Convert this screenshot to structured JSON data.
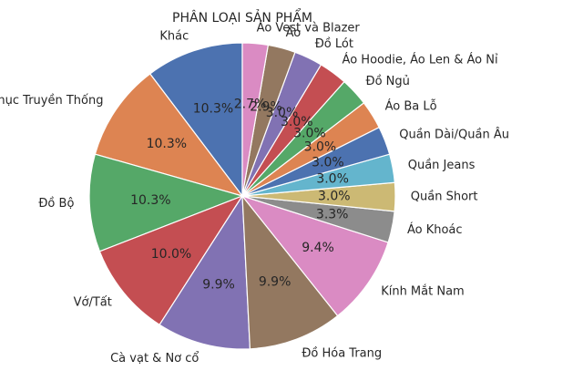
{
  "chart_data": {
    "type": "pie",
    "title": "PHÂN LOẠI SẢN PHẨM",
    "start_angle_deg": 90,
    "direction": "counterclockwise",
    "slices": [
      {
        "label": "Khác",
        "value": 10.3,
        "pct_label": "10.3%",
        "color": "#4c72b0"
      },
      {
        "label": "Trang Phục Truyền Thống",
        "value": 10.3,
        "pct_label": "10.3%",
        "color": "#dd8452"
      },
      {
        "label": "Đồ Bộ",
        "value": 10.3,
        "pct_label": "10.3%",
        "color": "#55a868"
      },
      {
        "label": "Vớ/Tất",
        "value": 10.0,
        "pct_label": "10.0%",
        "color": "#c44e52"
      },
      {
        "label": "Cà vạt & Nơ cổ",
        "value": 9.9,
        "pct_label": "9.9%",
        "color": "#8172b3"
      },
      {
        "label": "Đồ Hóa Trang",
        "value": 9.9,
        "pct_label": "9.9%",
        "color": "#937860"
      },
      {
        "label": "Kính Mắt Nam",
        "value": 9.4,
        "pct_label": "9.4%",
        "color": "#da8bc3"
      },
      {
        "label": "Áo Khoác",
        "value": 3.3,
        "pct_label": "3.3%",
        "color": "#8c8c8c"
      },
      {
        "label": "Quần Short",
        "value": 3.0,
        "pct_label": "3.0%",
        "color": "#ccb974"
      },
      {
        "label": "Quần Jeans",
        "value": 3.0,
        "pct_label": "3.0%",
        "color": "#64b5cd"
      },
      {
        "label": "Quần Dài/Quần Âu",
        "value": 3.0,
        "pct_label": "3.0%",
        "color": "#4c72b0"
      },
      {
        "label": "Áo Ba Lỗ",
        "value": 3.0,
        "pct_label": "3.0%",
        "color": "#dd8452"
      },
      {
        "label": "Đồ Ngủ",
        "value": 3.0,
        "pct_label": "3.0%",
        "color": "#55a868"
      },
      {
        "label": "Áo Hoodie, Áo Len & Áo Nỉ",
        "value": 3.0,
        "pct_label": "3.0%",
        "color": "#c44e52"
      },
      {
        "label": "Đồ Lót",
        "value": 3.0,
        "pct_label": "3.0%",
        "color": "#8172b3"
      },
      {
        "label": "Áo",
        "value": 2.9,
        "pct_label": "2.9%",
        "color": "#937860"
      },
      {
        "label": "Áo Vest và Blazer",
        "value": 2.7,
        "pct_label": "2.7%",
        "color": "#da8bc3"
      }
    ]
  }
}
